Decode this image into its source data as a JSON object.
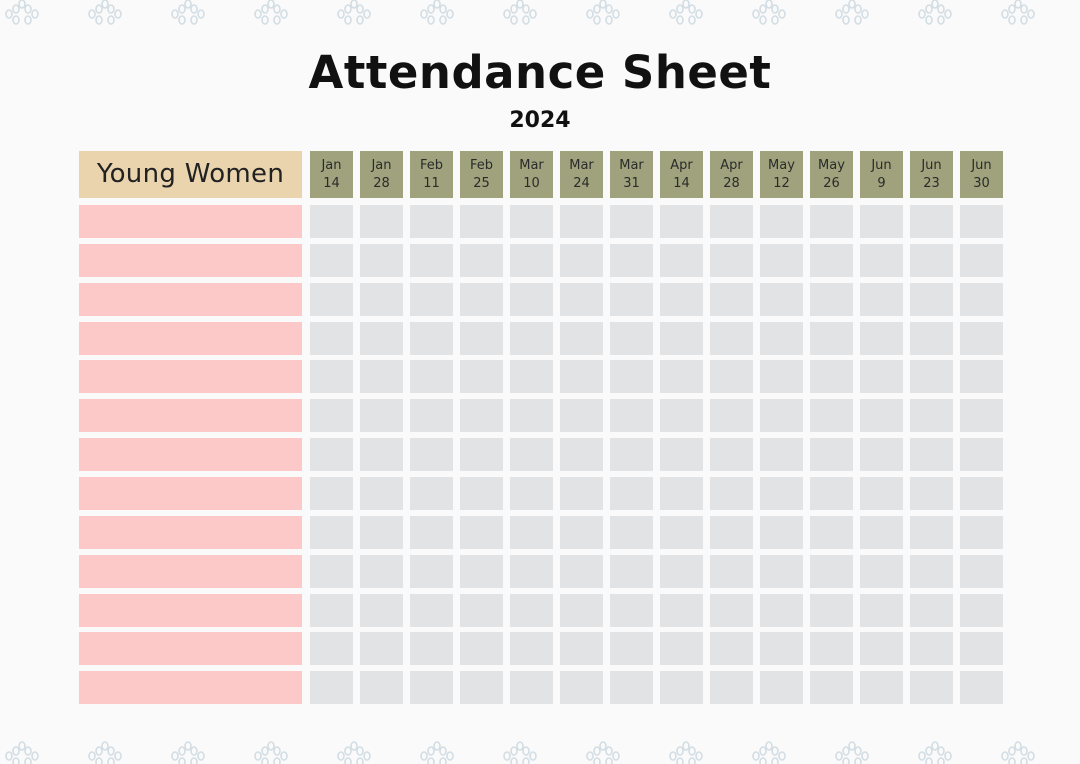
{
  "title": "Attendance Sheet",
  "year": "2024",
  "group_header": "Young Women",
  "dates": [
    {
      "month": "Jan",
      "day": "14"
    },
    {
      "month": "Jan",
      "day": "28"
    },
    {
      "month": "Feb",
      "day": "11"
    },
    {
      "month": "Feb",
      "day": "25"
    },
    {
      "month": "Mar",
      "day": "10"
    },
    {
      "month": "Mar",
      "day": "24"
    },
    {
      "month": "Mar",
      "day": "31"
    },
    {
      "month": "Apr",
      "day": "14"
    },
    {
      "month": "Apr",
      "day": "28"
    },
    {
      "month": "May",
      "day": "12"
    },
    {
      "month": "May",
      "day": "26"
    },
    {
      "month": "Jun",
      "day": "9"
    },
    {
      "month": "Jun",
      "day": "23"
    },
    {
      "month": "Jun",
      "day": "30"
    }
  ],
  "row_count": 13,
  "colors": {
    "name_header": "#ead4ae",
    "date_header": "#9fa27c",
    "name_cell": "#fcc8c8",
    "grid_cell": "#e1e3e5",
    "pattern": "#d3dde4"
  }
}
